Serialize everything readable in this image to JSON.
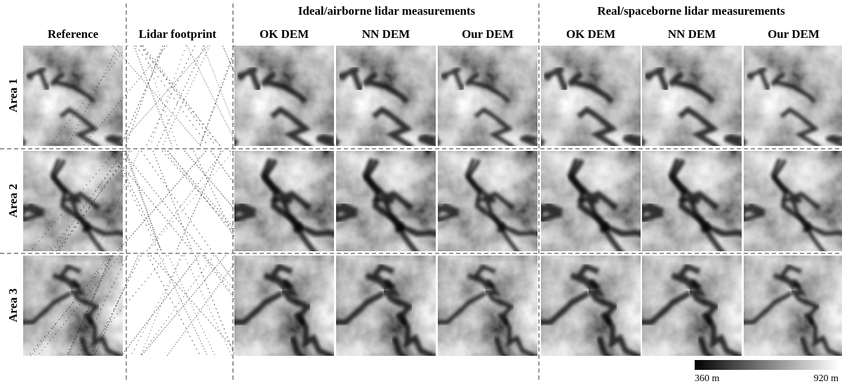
{
  "groups": [
    "Ideal/airborne lidar measurements",
    "Real/spaceborne lidar measurements"
  ],
  "columns": [
    "Reference",
    "Lidar footprint",
    "OK DEM",
    "NN DEM",
    "Our DEM",
    "OK DEM",
    "NN DEM",
    "Our DEM"
  ],
  "rows": [
    "Area 1",
    "Area 2",
    "Area 3"
  ],
  "colorbar": {
    "min_label": "360 m",
    "max_label": "920 m"
  }
}
